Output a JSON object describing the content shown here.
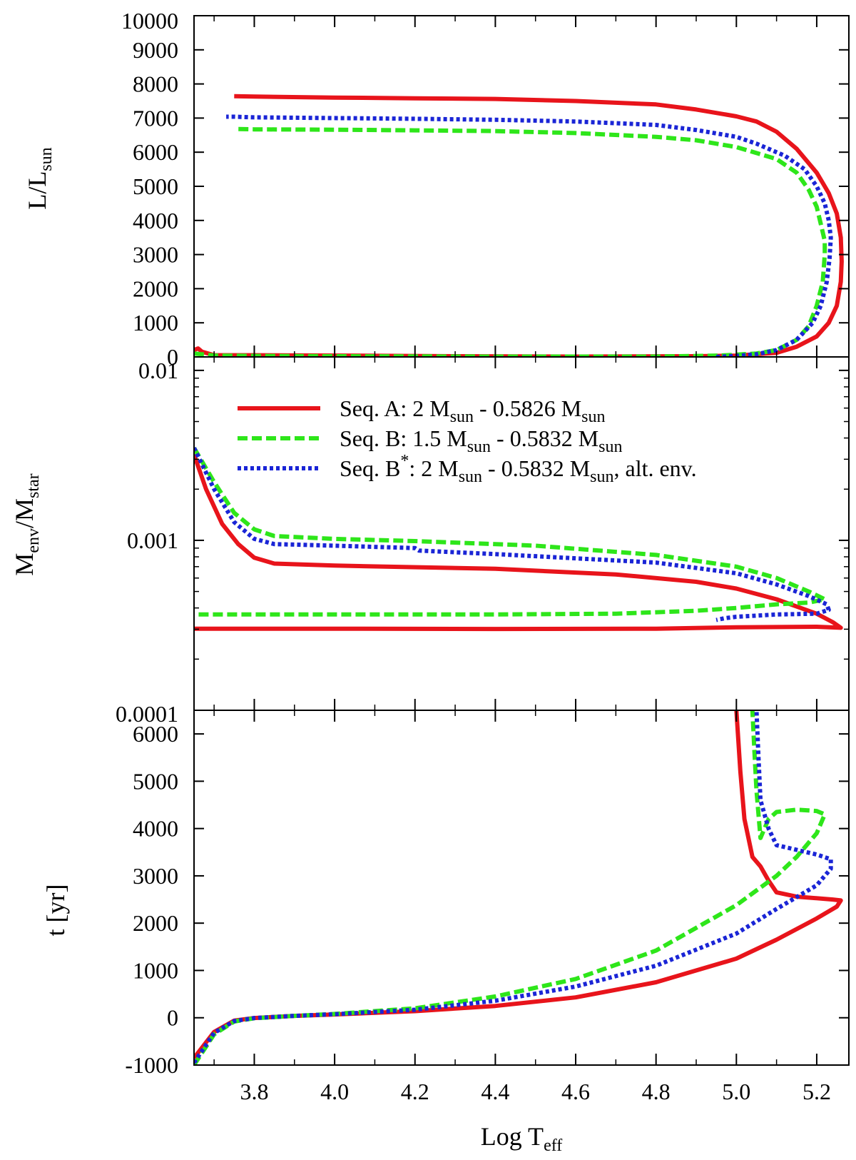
{
  "chart_data": [
    {
      "panel": "top",
      "type": "line",
      "ylabel": {
        "main": "L/L",
        "sub": "sun"
      },
      "ylim": [
        0,
        10000
      ],
      "xlim": [
        3.65,
        5.28
      ],
      "yticks": [
        0,
        1000,
        2000,
        3000,
        4000,
        5000,
        6000,
        7000,
        8000,
        9000,
        10000
      ],
      "yticklabels": [
        "0",
        "1000",
        "2000",
        "3000",
        "4000",
        "5000",
        "6000",
        "7000",
        "8000",
        "9000",
        "10000"
      ],
      "series": [
        {
          "name": "Seq. A",
          "x": [
            3.65,
            3.66,
            3.67,
            3.7,
            3.8,
            4.0,
            4.3,
            4.6,
            4.9,
            5.0,
            5.1,
            5.15,
            5.2,
            5.23,
            5.25,
            5.26,
            5.262,
            5.26,
            5.25,
            5.23,
            5.2,
            5.15,
            5.1,
            5.05,
            5.0,
            4.9,
            4.8,
            4.6,
            4.4,
            4.2,
            4.0,
            3.8,
            3.75
          ],
          "y": [
            200,
            250,
            150,
            50,
            50,
            40,
            20,
            10,
            20,
            40,
            120,
            300,
            600,
            1000,
            1500,
            2200,
            2800,
            3500,
            4200,
            4800,
            5400,
            6100,
            6600,
            6900,
            7050,
            7250,
            7400,
            7500,
            7560,
            7580,
            7600,
            7630,
            7640
          ]
        },
        {
          "name": "Seq. B",
          "x": [
            3.65,
            3.7,
            3.8,
            4.0,
            4.4,
            4.8,
            4.96,
            5.05,
            5.1,
            5.15,
            5.18,
            5.2,
            5.215,
            5.22,
            5.22,
            5.21,
            5.2,
            5.18,
            5.15,
            5.1,
            5.0,
            4.9,
            4.8,
            4.6,
            4.4,
            4.2,
            4.0,
            3.8,
            3.75
          ],
          "y": [
            100,
            40,
            30,
            20,
            10,
            10,
            40,
            100,
            200,
            500,
            900,
            1500,
            2200,
            3000,
            3400,
            3900,
            4400,
            4900,
            5400,
            5800,
            6150,
            6350,
            6450,
            6560,
            6620,
            6640,
            6660,
            6670,
            6680
          ]
        },
        {
          "name": "Seq. B*",
          "x": [
            4.95,
            5.0,
            5.05,
            5.1,
            5.15,
            5.19,
            5.21,
            5.225,
            5.232,
            5.235,
            5.23,
            5.22,
            5.2,
            5.17,
            5.12,
            5.05,
            5.0,
            4.9,
            4.8,
            4.6,
            4.4,
            4.2,
            4.0,
            3.8,
            3.75,
            3.73
          ],
          "y": [
            0,
            30,
            80,
            200,
            500,
            1000,
            1500,
            2200,
            2900,
            3500,
            4000,
            4500,
            5000,
            5500,
            5900,
            6250,
            6450,
            6650,
            6800,
            6900,
            6950,
            6980,
            7000,
            7020,
            7040,
            7040
          ]
        }
      ]
    },
    {
      "panel": "middle",
      "type": "line",
      "ylabel": {
        "main": "M",
        "sub1": "env",
        "mid": "/M",
        "sub2": "star"
      },
      "yscale": "log",
      "ylim": [
        0.0001,
        0.012
      ],
      "xlim": [
        3.65,
        5.28
      ],
      "yticks": [
        0.0001,
        0.001,
        0.01
      ],
      "yticklabels": [
        "0.0001",
        "0.001",
        "0.01"
      ],
      "series": [
        {
          "name": "Seq. A",
          "x": [
            3.65,
            3.68,
            3.72,
            3.76,
            3.8,
            3.85,
            4.0,
            4.4,
            4.7,
            4.9,
            5.0,
            5.1,
            5.2,
            5.24,
            5.26,
            5.2,
            5.0,
            4.8,
            4.4,
            4.0,
            3.65
          ],
          "y": [
            0.0032,
            0.002,
            0.00125,
            0.00095,
            0.00079,
            0.00073,
            0.00071,
            0.00068,
            0.00063,
            0.00057,
            0.00052,
            0.00045,
            0.00037,
            0.00033,
            0.000306,
            0.00031,
            0.000308,
            0.000302,
            0.000301,
            0.000302,
            0.000302
          ]
        },
        {
          "name": "Seq. B",
          "x": [
            3.65,
            3.7,
            3.75,
            3.8,
            3.85,
            4.0,
            4.2,
            4.5,
            4.8,
            5.0,
            5.1,
            5.18,
            5.22,
            5.18,
            5.1,
            5.0,
            4.9,
            4.7,
            4.4,
            4.0,
            3.65
          ],
          "y": [
            0.0035,
            0.0022,
            0.00145,
            0.00116,
            0.00106,
            0.00102,
            0.00099,
            0.00093,
            0.00082,
            0.0007,
            0.0006,
            0.0005,
            0.00045,
            0.00043,
            0.00042,
            0.0004,
            0.000385,
            0.00037,
            0.000366,
            0.000366,
            0.000366
          ]
        },
        {
          "name": "Seq. B*",
          "x": [
            3.65,
            3.7,
            3.75,
            3.8,
            3.85,
            4.0,
            4.2,
            4.21,
            4.4,
            4.8,
            5.0,
            5.1,
            5.18,
            5.225,
            5.23,
            5.2,
            5.1,
            5.0,
            4.97,
            4.95
          ],
          "y": [
            0.0035,
            0.002,
            0.00128,
            0.00102,
            0.00095,
            0.00093,
            0.0009,
            0.00087,
            0.00083,
            0.00074,
            0.00064,
            0.00055,
            0.00047,
            0.00042,
            0.00039,
            0.00037,
            0.000366,
            0.000355,
            0.000348,
            0.00034
          ]
        }
      ]
    },
    {
      "panel": "bottom",
      "type": "line",
      "ylabel": {
        "main": "t [yr]"
      },
      "xlabel": {
        "main": "Log T",
        "sub": "eff"
      },
      "ylim": [
        -1000,
        6500
      ],
      "xlim": [
        3.65,
        5.28
      ],
      "yticks": [
        -1000,
        0,
        1000,
        2000,
        3000,
        4000,
        5000,
        6000
      ],
      "yticklabels": [
        "-1000",
        "0",
        "1000",
        "2000",
        "3000",
        "4000",
        "5000",
        "6000"
      ],
      "xticks": [
        3.8,
        4.0,
        4.2,
        4.4,
        4.6,
        4.8,
        5.0,
        5.2
      ],
      "xticklabels": [
        "3.8",
        "4.0",
        "4.2",
        "4.4",
        "4.6",
        "4.8",
        "5.0",
        "5.2"
      ],
      "series": [
        {
          "name": "Seq. A",
          "x": [
            3.65,
            3.7,
            3.75,
            3.8,
            3.9,
            4.0,
            4.2,
            4.4,
            4.6,
            4.8,
            5.0,
            5.1,
            5.2,
            5.25,
            5.26,
            5.24,
            5.15,
            5.1,
            5.08,
            5.06,
            5.04,
            5.02,
            5.01,
            5.0
          ],
          "y": [
            -850,
            -300,
            -60,
            -5,
            40,
            70,
            140,
            250,
            430,
            750,
            1250,
            1650,
            2100,
            2350,
            2480,
            2500,
            2560,
            2650,
            2900,
            3200,
            3400,
            4200,
            5200,
            6500
          ]
        },
        {
          "name": "Seq. B",
          "x": [
            3.65,
            3.7,
            3.75,
            3.8,
            3.9,
            4.0,
            4.2,
            4.4,
            4.6,
            4.8,
            5.0,
            5.1,
            5.15,
            5.2,
            5.22,
            5.2,
            5.15,
            5.1,
            5.08,
            5.06,
            5.05,
            5.045,
            5.04
          ],
          "y": [
            -1000,
            -350,
            -80,
            -10,
            40,
            80,
            200,
            450,
            820,
            1420,
            2380,
            3000,
            3400,
            3900,
            4300,
            4370,
            4400,
            4350,
            4200,
            3800,
            4800,
            5600,
            6500
          ]
        },
        {
          "name": "Seq. B*",
          "x": [
            3.65,
            3.7,
            3.75,
            3.8,
            3.9,
            4.0,
            4.2,
            4.4,
            4.6,
            4.8,
            5.0,
            5.1,
            5.2,
            5.235,
            5.235,
            5.2,
            5.1,
            5.08,
            5.06,
            5.055,
            5.05
          ],
          "y": [
            -950,
            -320,
            -70,
            -5,
            40,
            75,
            170,
            360,
            660,
            1100,
            1780,
            2300,
            2800,
            3150,
            3350,
            3450,
            3650,
            4000,
            4600,
            5500,
            6500
          ]
        }
      ]
    }
  ],
  "legend": {
    "position": "top-right of middle panel",
    "entries": [
      {
        "series": "Seq. A",
        "pre": "Seq. A: 2 M",
        "s1": "sun",
        "mid": " - 0.5826  M",
        "s2": "sun",
        "post": ""
      },
      {
        "series": "Seq. B",
        "pre": "Seq. B: 1.5 M",
        "s1": "sun",
        "mid": " - 0.5832  M",
        "s2": "sun",
        "post": ""
      },
      {
        "series": "Seq. B*",
        "pre": "Seq. B",
        "sup": "*",
        "pre2": ": 2 M",
        "s1": "sun",
        "mid": " - 0.5832  M",
        "s2": "sun",
        "post": ", alt. env."
      }
    ]
  },
  "colors": {
    "Seq. A": "#e8141b",
    "Seq. B": "#2ee61a",
    "Seq. B*": "#1a25d6"
  }
}
